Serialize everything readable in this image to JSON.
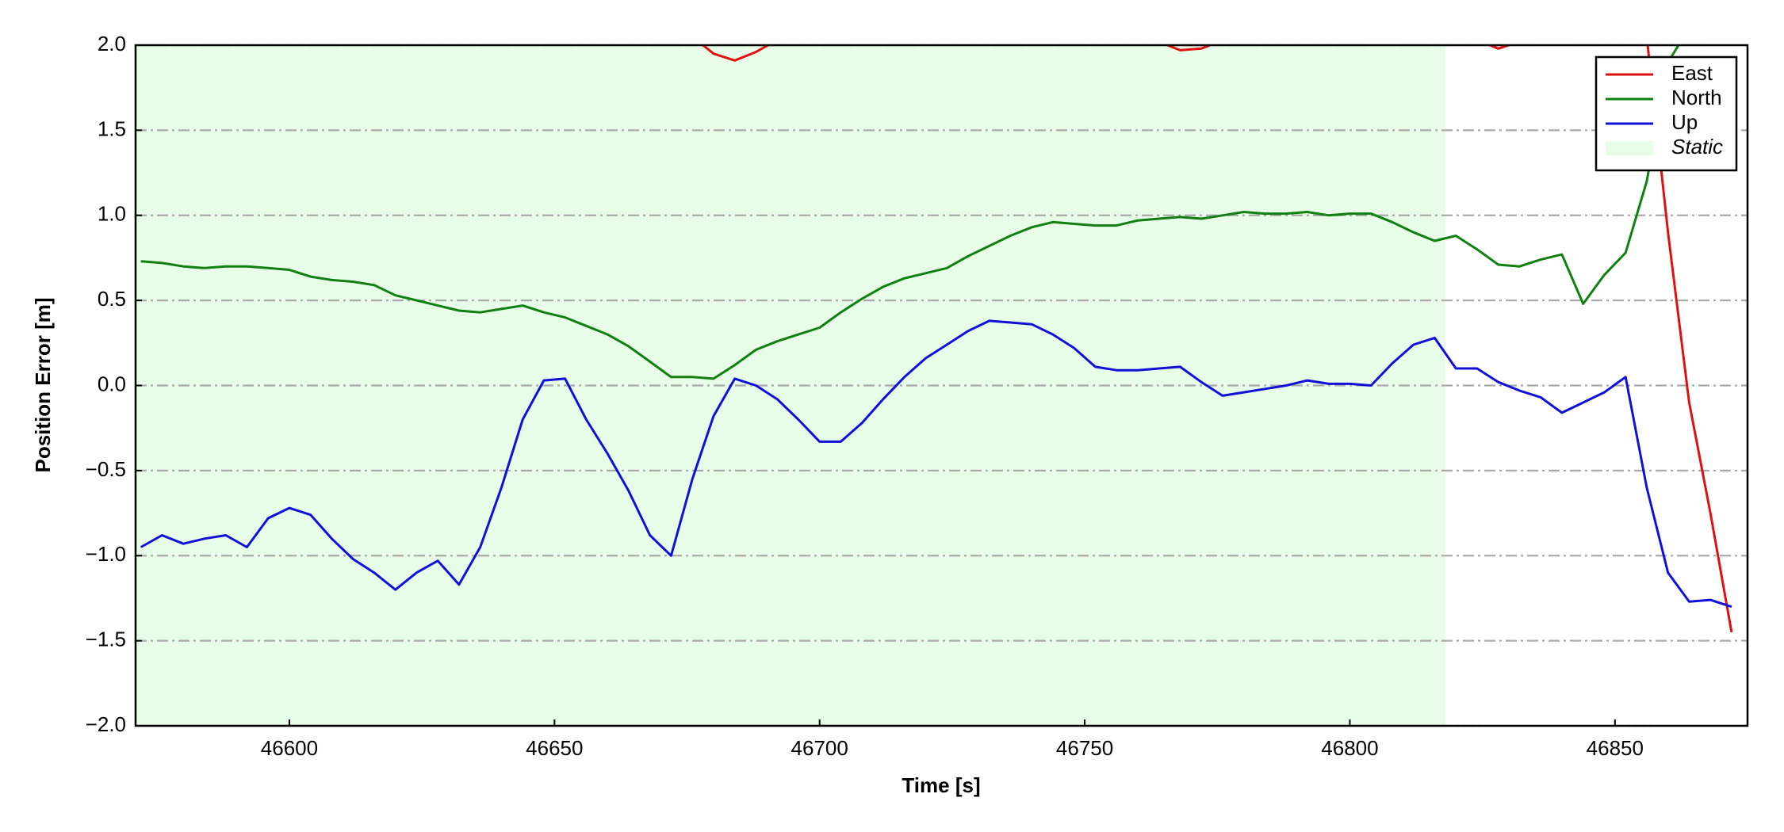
{
  "chart_data": {
    "type": "line",
    "xlabel": "Time [s]",
    "ylabel": "Position Error [m]",
    "xlim": [
      46571,
      46875
    ],
    "ylim": [
      -2,
      2
    ],
    "xticks": [
      46600,
      46650,
      46700,
      46750,
      46800,
      46850
    ],
    "yticks": [
      {
        "value": -2,
        "label": "−2.0"
      },
      {
        "value": -1.5,
        "label": "−1.5"
      },
      {
        "value": -1,
        "label": "−1.0"
      },
      {
        "value": -0.5,
        "label": "−0.5"
      },
      {
        "value": 0,
        "label": "0.0"
      },
      {
        "value": 0.5,
        "label": "0.5"
      },
      {
        "value": 1,
        "label": "1.0"
      },
      {
        "value": 1.5,
        "label": "1.5"
      },
      {
        "value": 2,
        "label": "2.0"
      }
    ],
    "grid": true,
    "legend": "upper right",
    "shaded_region": {
      "name": "Static",
      "x": [
        46571,
        46818
      ],
      "color": "#e8fde8"
    },
    "x": [
      46572,
      46576,
      46580,
      46584,
      46588,
      46592,
      46596,
      46600,
      46604,
      46608,
      46612,
      46616,
      46620,
      46624,
      46628,
      46632,
      46636,
      46640,
      46644,
      46648,
      46652,
      46656,
      46660,
      46664,
      46668,
      46672,
      46676,
      46680,
      46684,
      46688,
      46692,
      46696,
      46700,
      46704,
      46708,
      46712,
      46716,
      46720,
      46724,
      46728,
      46732,
      46736,
      46740,
      46744,
      46748,
      46752,
      46756,
      46760,
      46764,
      46768,
      46772,
      46776,
      46780,
      46784,
      46788,
      46792,
      46796,
      46800,
      46804,
      46808,
      46812,
      46816,
      46820,
      46824,
      46828,
      46832,
      46836,
      46840,
      46844,
      46848,
      46852,
      46856,
      46860,
      46864,
      46868,
      46872
    ],
    "series": [
      {
        "name": "East",
        "color": "#e01010",
        "values": [
          null,
          null,
          null,
          null,
          null,
          null,
          null,
          null,
          null,
          null,
          null,
          null,
          null,
          null,
          null,
          null,
          null,
          null,
          null,
          null,
          null,
          null,
          null,
          null,
          null,
          null,
          2.05,
          1.95,
          1.91,
          1.96,
          2.03,
          null,
          null,
          null,
          null,
          null,
          null,
          null,
          null,
          null,
          null,
          null,
          null,
          null,
          null,
          null,
          null,
          null,
          2.02,
          1.97,
          1.98,
          2.03,
          null,
          null,
          null,
          null,
          null,
          null,
          null,
          null,
          null,
          null,
          null,
          2.03,
          1.98,
          2.02,
          null,
          null,
          null,
          null,
          null,
          2.05,
          0.9,
          -0.1,
          -0.75,
          -1.45
        ]
      },
      {
        "name": "North",
        "color": "#108010",
        "values": [
          0.73,
          0.72,
          0.7,
          0.69,
          0.7,
          0.7,
          0.69,
          0.68,
          0.64,
          0.62,
          0.61,
          0.59,
          0.53,
          0.5,
          0.47,
          0.44,
          0.43,
          0.45,
          0.47,
          0.43,
          0.4,
          0.35,
          0.3,
          0.23,
          0.14,
          0.05,
          0.05,
          0.04,
          0.12,
          0.21,
          0.26,
          0.3,
          0.34,
          0.43,
          0.51,
          0.58,
          0.63,
          0.66,
          0.69,
          0.76,
          0.82,
          0.88,
          0.93,
          0.96,
          0.95,
          0.94,
          0.94,
          0.97,
          0.98,
          0.99,
          0.98,
          1.0,
          1.02,
          1.01,
          1.01,
          1.02,
          1.0,
          1.01,
          1.01,
          0.96,
          0.9,
          0.85,
          0.88,
          0.8,
          0.71,
          0.7,
          0.74,
          0.77,
          0.48,
          0.65,
          0.78,
          1.2,
          1.9,
          2.1,
          null,
          null
        ]
      },
      {
        "name": "Up",
        "color": "#1010d8",
        "values": [
          -0.95,
          -0.88,
          -0.93,
          -0.9,
          -0.88,
          -0.95,
          -0.78,
          -0.72,
          -0.76,
          -0.9,
          -1.02,
          -1.1,
          -1.2,
          -1.1,
          -1.03,
          -1.17,
          -0.95,
          -0.6,
          -0.2,
          0.03,
          0.04,
          -0.2,
          -0.4,
          -0.62,
          -0.88,
          -1.0,
          -0.55,
          -0.18,
          0.04,
          0.0,
          -0.08,
          -0.2,
          -0.33,
          -0.33,
          -0.22,
          -0.08,
          0.05,
          0.16,
          0.24,
          0.32,
          0.38,
          0.37,
          0.36,
          0.3,
          0.22,
          0.11,
          0.09,
          0.09,
          0.1,
          0.11,
          0.02,
          -0.06,
          -0.04,
          -0.02,
          0.0,
          0.03,
          0.01,
          0.01,
          0.0,
          0.13,
          0.24,
          0.28,
          0.1,
          0.1,
          0.02,
          -0.03,
          -0.07,
          -0.16,
          -0.1,
          -0.04,
          0.05,
          -0.6,
          -1.1,
          -1.27,
          -1.26,
          -1.3
        ]
      }
    ]
  }
}
